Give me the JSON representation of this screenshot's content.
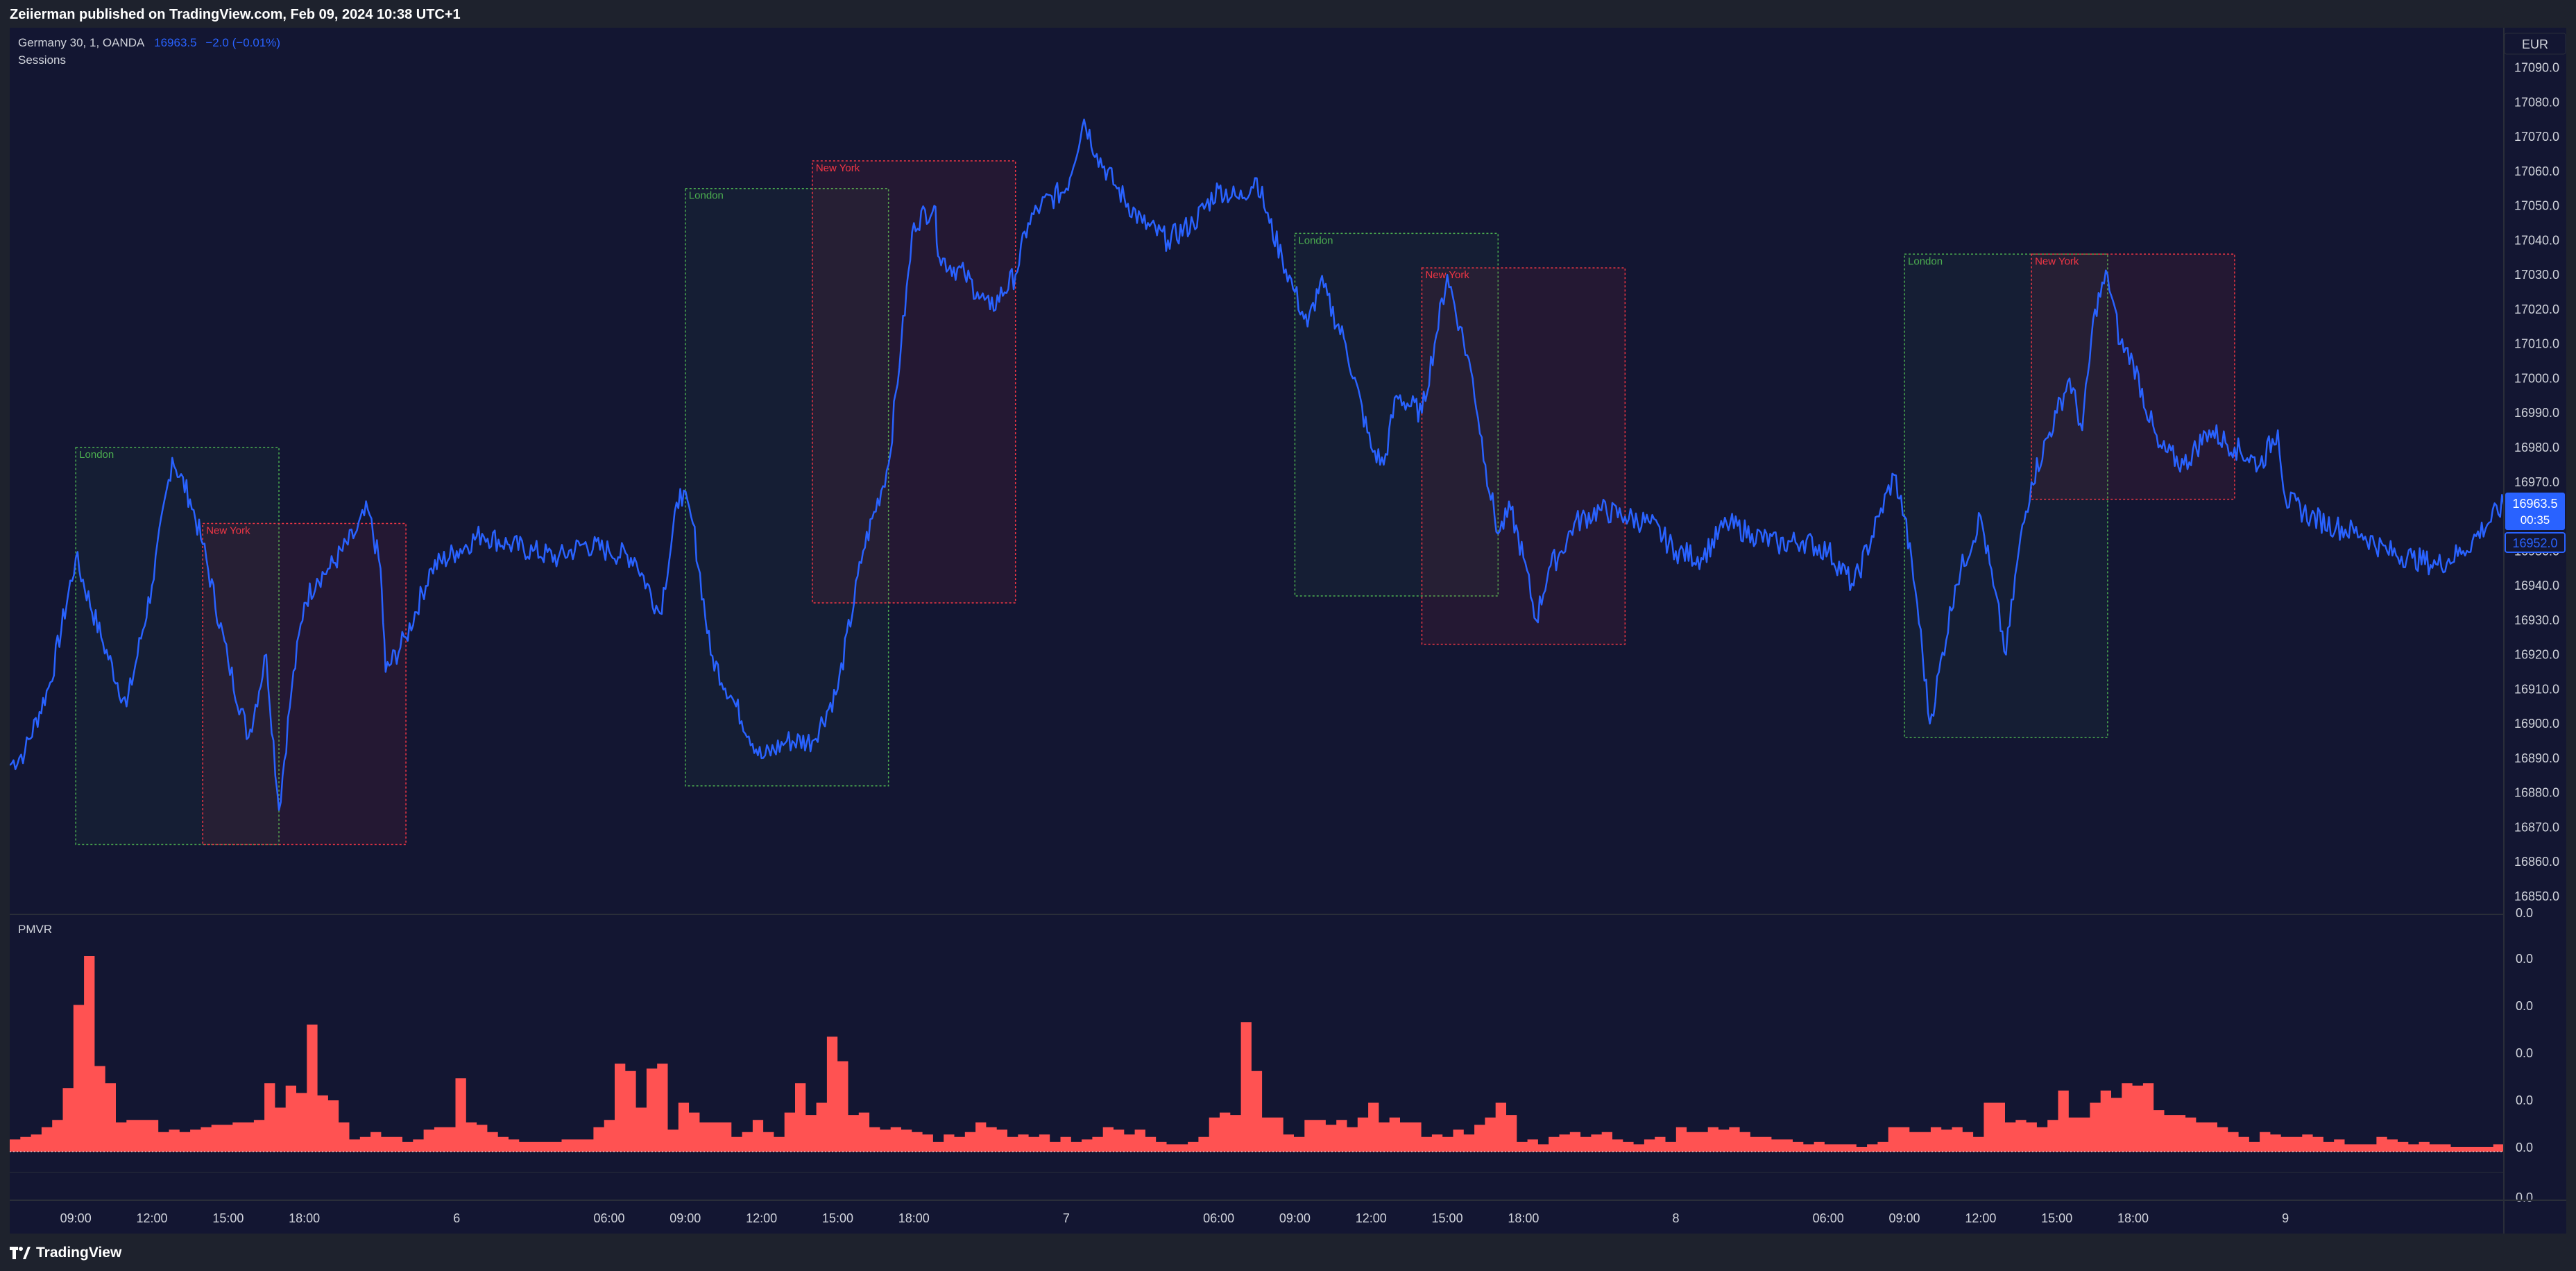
{
  "header": {
    "publish_line": "Zeiierman published on TradingView.com, Feb 09, 2024 10:38 UTC+1"
  },
  "legend": {
    "symbol": "Germany 30, 1, OANDA",
    "last_price": "16963.5",
    "change": "−2.0 (−0.01%)",
    "indicator": "Sessions",
    "subpane_title": "PMVR"
  },
  "currency": "EUR",
  "price_badges": {
    "last_price": "16963.5",
    "countdown": "00:35",
    "secondary_price": "16952.0"
  },
  "footer": {
    "brand": "TradingView"
  },
  "colors": {
    "background": "#131632",
    "price_line": "#2962ff",
    "london": "#4caf50",
    "new_york": "#f23645",
    "volume_area": "#ff5252",
    "badge": "#2962ff"
  },
  "chart_data": [
    {
      "type": "line",
      "title": "Germany 30, 1, OANDA",
      "ylabel": "EUR",
      "ylim": [
        16845,
        17095
      ],
      "yticks": [
        "17090.0",
        "17080.0",
        "17070.0",
        "17060.0",
        "17050.0",
        "17040.0",
        "17030.0",
        "17020.0",
        "17010.0",
        "17000.0",
        "16990.0",
        "16980.0",
        "16970.0",
        "16960.0",
        "16950.0",
        "16940.0",
        "16930.0",
        "16920.0",
        "16910.0",
        "16900.0",
        "16890.0",
        "16880.0",
        "16870.0",
        "16860.0",
        "16850.0"
      ],
      "xticks": [
        "09:00",
        "12:00",
        "15:00",
        "18:00",
        "6",
        "06:00",
        "09:00",
        "12:00",
        "15:00",
        "18:00",
        "7",
        "06:00",
        "09:00",
        "12:00",
        "15:00",
        "18:00",
        "8",
        "06:00",
        "09:00",
        "12:00",
        "15:00",
        "18:00",
        "9"
      ],
      "x_hours": [
        9,
        12,
        15,
        18,
        24,
        30,
        33,
        36,
        39,
        42,
        48,
        54,
        57,
        60,
        63,
        66,
        72,
        78,
        81,
        84,
        87,
        90,
        96
      ],
      "x_range_hours": [
        6.4,
        104.6
      ],
      "series": [
        {
          "values": [
            [
              6.4,
              16888
            ],
            [
              7,
              16892
            ],
            [
              8,
              16912
            ],
            [
              9,
              16948
            ],
            [
              10,
              16925
            ],
            [
              11,
              16905
            ],
            [
              12,
              16940
            ],
            [
              12.8,
              16977
            ],
            [
              13.5,
              16965
            ],
            [
              14,
              16952
            ],
            [
              15,
              16918
            ],
            [
              15.8,
              16896
            ],
            [
              16.5,
              16920
            ],
            [
              17,
              16875
            ],
            [
              17.5,
              16910
            ],
            [
              18,
              16935
            ],
            [
              18.5,
              16942
            ],
            [
              19,
              16945
            ],
            [
              20,
              16955
            ],
            [
              20.5,
              16962
            ],
            [
              21,
              16945
            ],
            [
              21.2,
              16915
            ],
            [
              22,
              16925
            ],
            [
              23,
              16945
            ],
            [
              24,
              16950
            ],
            [
              25,
              16955
            ],
            [
              26,
              16952
            ],
            [
              27,
              16950
            ],
            [
              28,
              16948
            ],
            [
              29,
              16952
            ],
            [
              30,
              16950
            ],
            [
              31,
              16948
            ],
            [
              32,
              16932
            ],
            [
              32.8,
              16968
            ],
            [
              33.3,
              16958
            ],
            [
              34,
              16920
            ],
            [
              35,
              16905
            ],
            [
              36,
              16890
            ],
            [
              37,
              16895
            ],
            [
              38,
              16895
            ],
            [
              39,
              16910
            ],
            [
              40,
              16950
            ],
            [
              41,
              16975
            ],
            [
              41.5,
              17010
            ],
            [
              42,
              17045
            ],
            [
              42.8,
              17050
            ],
            [
              43,
              17035
            ],
            [
              44,
              17030
            ],
            [
              44.5,
              17025
            ],
            [
              45,
              17020
            ],
            [
              46,
              17030
            ],
            [
              46.5,
              17045
            ],
            [
              47,
              17050
            ],
            [
              48,
              17055
            ],
            [
              48.7,
              17075
            ],
            [
              49.2,
              17065
            ],
            [
              50,
              17055
            ],
            [
              51,
              17045
            ],
            [
              52,
              17040
            ],
            [
              53,
              17045
            ],
            [
              54,
              17055
            ],
            [
              54.8,
              17052
            ],
            [
              55.5,
              17058
            ],
            [
              56,
              17045
            ],
            [
              56.5,
              17035
            ],
            [
              57,
              17025
            ],
            [
              57.5,
              17015
            ],
            [
              58,
              17028
            ],
            [
              59,
              17010
            ],
            [
              60,
              16980
            ],
            [
              60.5,
              16975
            ],
            [
              61,
              16995
            ],
            [
              62,
              16990
            ],
            [
              62.5,
              17010
            ],
            [
              63,
              17030
            ],
            [
              63.5,
              17015
            ],
            [
              64,
              17000
            ],
            [
              64.5,
              16975
            ],
            [
              65,
              16955
            ],
            [
              65.5,
              16962
            ],
            [
              66,
              16948
            ],
            [
              66.5,
              16930
            ],
            [
              67,
              16945
            ],
            [
              67.5,
              16950
            ],
            [
              68,
              16958
            ],
            [
              69,
              16962
            ],
            [
              70,
              16960
            ],
            [
              71,
              16958
            ],
            [
              72,
              16950
            ],
            [
              73,
              16948
            ],
            [
              74,
              16958
            ],
            [
              75,
              16955
            ],
            [
              76,
              16952
            ],
            [
              77,
              16953
            ],
            [
              78,
              16950
            ],
            [
              79,
              16940
            ],
            [
              80,
              16960
            ],
            [
              80.6,
              16972
            ],
            [
              81,
              16960
            ],
            [
              81.5,
              16935
            ],
            [
              82,
              16900
            ],
            [
              83,
              16940
            ],
            [
              84,
              16960
            ],
            [
              84.5,
              16940
            ],
            [
              85,
              16920
            ],
            [
              85.5,
              16950
            ],
            [
              86,
              16970
            ],
            [
              87,
              16990
            ],
            [
              87.5,
              17000
            ],
            [
              88,
              16985
            ],
            [
              88.5,
              17020
            ],
            [
              89,
              17030
            ],
            [
              89.5,
              17010
            ],
            [
              90,
              17005
            ],
            [
              91,
              16980
            ],
            [
              92,
              16975
            ],
            [
              93,
              16985
            ],
            [
              94,
              16980
            ],
            [
              95,
              16975
            ],
            [
              95.7,
              16985
            ],
            [
              96,
              16965
            ],
            [
              97,
              16960
            ],
            [
              98,
              16957
            ],
            [
              99,
              16955
            ],
            [
              100,
              16950
            ],
            [
              101,
              16948
            ],
            [
              102,
              16946
            ],
            [
              103,
              16950
            ],
            [
              104.6,
              16963.5
            ]
          ]
        }
      ],
      "sessions": [
        {
          "label": "London",
          "start": 9,
          "end": 17,
          "high": 16980,
          "low": 16865
        },
        {
          "label": "New York",
          "start": 14,
          "end": 22,
          "high": 16958,
          "low": 16865
        },
        {
          "label": "London",
          "start": 33,
          "end": 41,
          "high": 17055,
          "low": 16882
        },
        {
          "label": "New York",
          "start": 38,
          "end": 46,
          "high": 17063,
          "low": 16935
        },
        {
          "label": "London",
          "start": 57,
          "end": 65,
          "high": 17042,
          "low": 16937
        },
        {
          "label": "New York",
          "start": 62,
          "end": 70,
          "high": 17032,
          "low": 16923
        },
        {
          "label": "London",
          "start": 81,
          "end": 89,
          "high": 17036,
          "low": 16896
        },
        {
          "label": "New York",
          "start": 86,
          "end": 94,
          "high": 17036,
          "low": 16965
        }
      ]
    },
    {
      "type": "area",
      "title": "PMVR",
      "yticks": [
        "0.0",
        "0.0",
        "0.0",
        "0.0",
        "0.0",
        "0.0",
        "0.0"
      ],
      "x_range_hours": [
        6.4,
        104.6
      ],
      "series": [
        {
          "values": [
            5,
            6,
            7,
            10,
            13,
            26,
            60,
            80,
            35,
            28,
            12,
            13,
            13,
            13,
            8,
            9,
            8,
            9,
            10,
            11,
            11,
            12,
            12,
            13,
            28,
            18,
            27,
            24,
            52,
            23,
            21,
            12,
            5,
            6,
            8,
            6,
            6,
            4,
            5,
            9,
            10,
            10,
            30,
            12,
            11,
            8,
            6,
            5,
            4,
            4,
            4,
            4,
            5,
            5,
            5,
            10,
            13,
            36,
            33,
            18,
            34,
            36,
            9,
            20,
            16,
            12,
            12,
            12,
            6,
            8,
            13,
            8,
            6,
            16,
            28,
            15,
            20,
            47,
            37,
            15,
            16,
            10,
            9,
            10,
            9,
            8,
            7,
            4,
            7,
            6,
            8,
            12,
            10,
            9,
            6,
            7,
            6,
            7,
            4,
            6,
            4,
            5,
            6,
            10,
            9,
            7,
            9,
            6,
            4,
            3,
            3,
            4,
            6,
            14,
            16,
            15,
            53,
            33,
            14,
            14,
            7,
            6,
            13,
            13,
            11,
            13,
            10,
            14,
            20,
            12,
            14,
            12,
            12,
            6,
            7,
            6,
            9,
            7,
            11,
            14,
            20,
            15,
            4,
            5,
            3,
            6,
            7,
            8,
            6,
            7,
            8,
            5,
            4,
            3,
            5,
            6,
            4,
            10,
            8,
            8,
            10,
            9,
            10,
            8,
            6,
            6,
            5,
            5,
            4,
            3,
            4,
            3,
            3,
            3,
            2,
            3,
            4,
            10,
            10,
            8,
            8,
            10,
            9,
            10,
            8,
            6,
            20,
            20,
            12,
            13,
            12,
            10,
            13,
            25,
            14,
            14,
            20,
            25,
            22,
            28,
            27,
            28,
            17,
            15,
            15,
            14,
            12,
            12,
            10,
            8,
            6,
            4,
            8,
            7,
            6,
            6,
            7,
            6,
            4,
            5,
            3,
            3,
            3,
            6,
            5,
            4,
            3,
            4,
            3,
            3,
            2,
            2,
            2,
            2,
            3
          ]
        }
      ]
    }
  ]
}
